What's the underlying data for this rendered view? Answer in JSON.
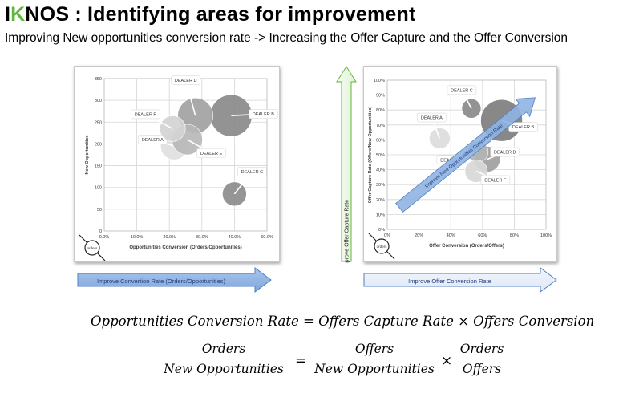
{
  "header": {
    "title_first": "I",
    "title_accent": "K",
    "title_rest": "NOS : Identifying areas for improvement",
    "subtitle": "Improving New opportunities conversion rate -> Increasing the Offer Capture and the Offer Conversion"
  },
  "colors": {
    "accent": "#5db83a",
    "arrow_fill": "#8fb4e3",
    "arrow_stroke": "#4f7fc0",
    "bubble": "#8c8c8c"
  },
  "chart_data": [
    {
      "type": "scatter",
      "title": "",
      "xlabel": "Opportunities Conversion (Orders/Opportunities)",
      "ylabel": "New Opportunities",
      "xlim": [
        0,
        50
      ],
      "ylim": [
        0,
        350
      ],
      "xticks": [
        "0.0%",
        "10.0%",
        "20.0%",
        "30.0%",
        "40.0%",
        "50.0%"
      ],
      "yticks": [
        "0",
        "50",
        "100",
        "150",
        "200",
        "250",
        "300",
        "350"
      ],
      "grid": true,
      "size_legend": "orders",
      "points": [
        {
          "name": "DEALER A",
          "x": 21.5,
          "y": 195,
          "r": 17,
          "shade": "#e0e0e0"
        },
        {
          "name": "DEALER B",
          "x": 39,
          "y": 265,
          "r": 26,
          "shade": "#8a8a8a"
        },
        {
          "name": "DEALER C",
          "x": 40,
          "y": 85,
          "r": 15,
          "shade": "#8c8c8c"
        },
        {
          "name": "DEALER D",
          "x": 28,
          "y": 265,
          "r": 22,
          "shade": "#a2a2a2"
        },
        {
          "name": "DEALER E",
          "x": 25.5,
          "y": 210,
          "r": 19,
          "shade": "#b8b8b8"
        },
        {
          "name": "DEALER F",
          "x": 21,
          "y": 235,
          "r": 16,
          "shade": "#d4d4d4"
        }
      ],
      "bottom_arrow": "Improve Convertion Rate (Orders/Opportunities)"
    },
    {
      "type": "scatter",
      "title": "",
      "xlabel": "Offer Conversion (Orders/Offers)",
      "ylabel": "Offer Capture Rate (Offers/New Opportunities)",
      "xlim": [
        0,
        100
      ],
      "ylim": [
        0,
        100
      ],
      "xticks": [
        "0%",
        "20%",
        "40%",
        "60%",
        "80%",
        "100%"
      ],
      "yticks": [
        "0%",
        "10%",
        "20%",
        "30%",
        "40%",
        "50%",
        "60%",
        "70%",
        "80%",
        "90%",
        "100%"
      ],
      "grid": true,
      "size_legend": "orders",
      "points": [
        {
          "name": "DEALER A",
          "x": 33,
          "y": 61,
          "r": 13,
          "shade": "#dcdcdc"
        },
        {
          "name": "DEALER B",
          "x": 72,
          "y": 73,
          "r": 26,
          "shade": "#7e7e7e"
        },
        {
          "name": "DEALER C",
          "x": 53,
          "y": 81,
          "r": 12,
          "shade": "#8a8a8a"
        },
        {
          "name": "DEALER D",
          "x": 63,
          "y": 47,
          "r": 16,
          "shade": "#a0a0a0"
        },
        {
          "name": "DEALER E",
          "x": 57,
          "y": 52,
          "r": 13,
          "shade": "#b4b4b4"
        },
        {
          "name": "DEALER F",
          "x": 56,
          "y": 39,
          "r": 14,
          "shade": "#d8d8d8"
        }
      ],
      "diagonal_arrow": "Improve New Opportunities Conversion Rate",
      "left_arrow": "Improve Offer Capture Rate",
      "bottom_arrow": "Improve Offer Conversion Rate"
    }
  ],
  "formula": {
    "line1": "Opportunities Conversion Rate = Offers Capture Rate × Offers Conversion",
    "frac1_num": "Orders",
    "frac1_den": "New Opportunities",
    "equals": "=",
    "frac2_num": "Offers",
    "frac2_den": "New Opportunities",
    "times": "×",
    "frac3_num": "Orders",
    "frac3_den": "Offers"
  }
}
